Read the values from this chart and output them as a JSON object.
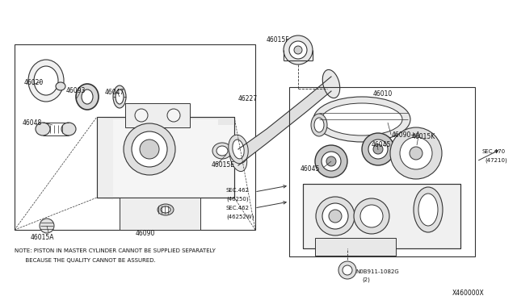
{
  "bg_color": "#ffffff",
  "line_color": "#333333",
  "fig_width": 6.4,
  "fig_height": 3.72,
  "dpi": 100,
  "note_line1": "NOTE: PISTON IN MASTER CYLINDER CANNOT BE SUPPLIED SEPARATELY",
  "note_line2": "      BECAUSE THE QUALITY CANNOT BE ASSURED.",
  "part_id": "X460000X"
}
